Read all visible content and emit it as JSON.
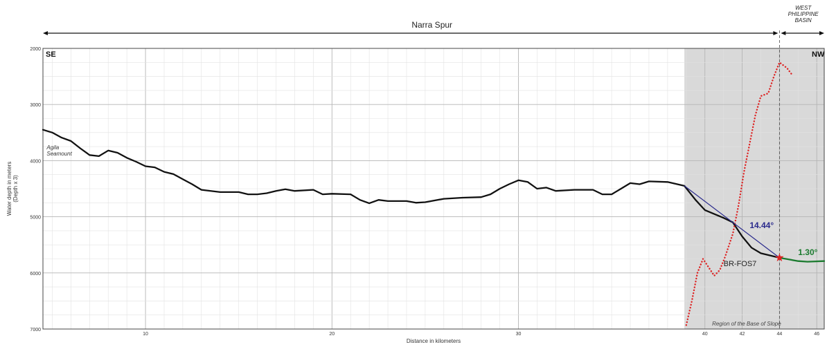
{
  "chart_data": {
    "type": "line",
    "title": "",
    "xlabel": "Distance in kilometers",
    "ylabel": "Water depth in meters",
    "ylabel_sub": "(Depth x 3)",
    "xlim": [
      4.5,
      46.4
    ],
    "ylim": [
      2000,
      7000
    ],
    "y_inverted": true,
    "grid": true,
    "x_ticks": [
      10,
      20,
      30,
      40,
      42,
      44,
      46
    ],
    "y_ticks": [
      2000,
      3000,
      4000,
      5000,
      6000,
      7000
    ],
    "regions": [
      {
        "label": "Narra Spur",
        "x_range": [
          4.5,
          44
        ]
      },
      {
        "label": "WEST PHILIPPINE BASIN",
        "label_lines": [
          "WEST",
          "PHILIPPINE",
          "BASIN"
        ],
        "x_range": [
          44,
          46.4
        ]
      }
    ],
    "direction_labels": {
      "left": "SE",
      "right": "NW"
    },
    "shaded_region": {
      "label": "Region of the Base of Slope",
      "x_range": [
        38.9,
        46.4
      ]
    },
    "vertical_line_x": 44,
    "series": [
      {
        "color": "#111111",
        "style": "solid",
        "points": [
          [
            4.5,
            3450
          ],
          [
            5.0,
            3500
          ],
          [
            5.5,
            3590
          ],
          [
            6.0,
            3650
          ],
          [
            6.5,
            3780
          ],
          [
            7.0,
            3900
          ],
          [
            7.5,
            3920
          ],
          [
            8.0,
            3820
          ],
          [
            8.5,
            3860
          ],
          [
            9.0,
            3950
          ],
          [
            9.5,
            4020
          ],
          [
            10.0,
            4100
          ],
          [
            10.5,
            4120
          ],
          [
            11.0,
            4200
          ],
          [
            11.5,
            4240
          ],
          [
            12.0,
            4330
          ],
          [
            12.5,
            4420
          ],
          [
            13.0,
            4520
          ],
          [
            14.0,
            4560
          ],
          [
            15.0,
            4560
          ],
          [
            15.5,
            4600
          ],
          [
            16.0,
            4600
          ],
          [
            16.5,
            4580
          ],
          [
            17.0,
            4540
          ],
          [
            17.5,
            4510
          ],
          [
            18.0,
            4540
          ],
          [
            19.0,
            4520
          ],
          [
            19.5,
            4600
          ],
          [
            20.0,
            4590
          ],
          [
            21.0,
            4600
          ],
          [
            21.5,
            4700
          ],
          [
            22.0,
            4760
          ],
          [
            22.5,
            4700
          ],
          [
            23.0,
            4720
          ],
          [
            24.0,
            4720
          ],
          [
            24.5,
            4750
          ],
          [
            25.0,
            4740
          ],
          [
            26.0,
            4680
          ],
          [
            27.0,
            4660
          ],
          [
            28.0,
            4650
          ],
          [
            28.5,
            4600
          ],
          [
            29.0,
            4500
          ],
          [
            29.5,
            4420
          ],
          [
            30.0,
            4350
          ],
          [
            30.5,
            4380
          ],
          [
            31.0,
            4500
          ],
          [
            31.5,
            4480
          ],
          [
            32.0,
            4540
          ],
          [
            33.0,
            4520
          ],
          [
            34.0,
            4520
          ],
          [
            34.5,
            4600
          ],
          [
            35.0,
            4600
          ],
          [
            35.5,
            4500
          ],
          [
            36.0,
            4400
          ],
          [
            36.5,
            4420
          ],
          [
            37.0,
            4370
          ],
          [
            38.0,
            4380
          ],
          [
            38.9,
            4450
          ],
          [
            39.5,
            4700
          ],
          [
            40.0,
            4880
          ],
          [
            41.0,
            5020
          ],
          [
            41.5,
            5100
          ],
          [
            42.0,
            5350
          ],
          [
            42.5,
            5550
          ],
          [
            43.0,
            5650
          ],
          [
            44.0,
            5730
          ]
        ]
      },
      {
        "color": "#1a7a2e",
        "style": "solid",
        "points": [
          [
            44.0,
            5730
          ],
          [
            44.5,
            5760
          ],
          [
            45.0,
            5790
          ],
          [
            45.5,
            5800
          ],
          [
            46.4,
            5790
          ]
        ]
      },
      {
        "color": "#dd2222",
        "style": "dotted",
        "points": [
          [
            39.0,
            6930
          ],
          [
            39.3,
            6500
          ],
          [
            39.6,
            6000
          ],
          [
            39.9,
            5750
          ],
          [
            40.2,
            5900
          ],
          [
            40.5,
            6050
          ],
          [
            40.8,
            5950
          ],
          [
            41.1,
            5700
          ],
          [
            41.5,
            5300
          ],
          [
            41.8,
            4800
          ],
          [
            42.1,
            4200
          ],
          [
            42.4,
            3700
          ],
          [
            42.7,
            3200
          ],
          [
            43.0,
            2850
          ],
          [
            43.4,
            2800
          ],
          [
            43.7,
            2500
          ],
          [
            44.0,
            2250
          ],
          [
            44.4,
            2350
          ],
          [
            44.7,
            2480
          ]
        ]
      },
      {
        "color": "#2a2a8c",
        "style": "solid",
        "points": [
          [
            38.9,
            4450
          ],
          [
            44.0,
            5730
          ]
        ]
      }
    ],
    "annotations": [
      {
        "text": "Agila",
        "text2": "Seamount",
        "x": 4.7,
        "y": 3800,
        "style": "italic"
      },
      {
        "text": "14.44°",
        "x": 42.4,
        "y": 5200,
        "color": "#2a2a8c"
      },
      {
        "text": "1.30°",
        "x": 45.0,
        "y": 5680,
        "color": "#1a7a2e"
      },
      {
        "text": "BR-FOS7",
        "x": 41.0,
        "y": 5880,
        "color": "#222222"
      }
    ],
    "marker": {
      "x": 44.0,
      "y": 5730,
      "color": "#dd2222"
    }
  }
}
